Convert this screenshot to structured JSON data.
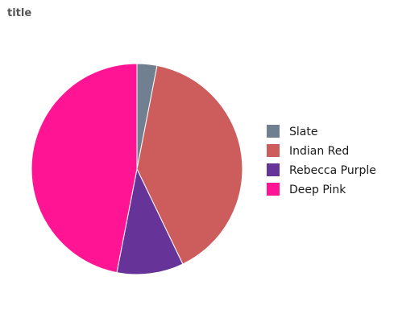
{
  "chart_data": {
    "type": "pie",
    "title": "title",
    "categories": [
      "Slate",
      "Indian Red",
      "Rebecca Purple",
      "Deep Pink"
    ],
    "values": [
      3,
      39,
      10,
      46
    ],
    "colors": [
      "#708090",
      "#cd5c5c",
      "#663399",
      "#ff1493"
    ],
    "legend_position": "right"
  }
}
